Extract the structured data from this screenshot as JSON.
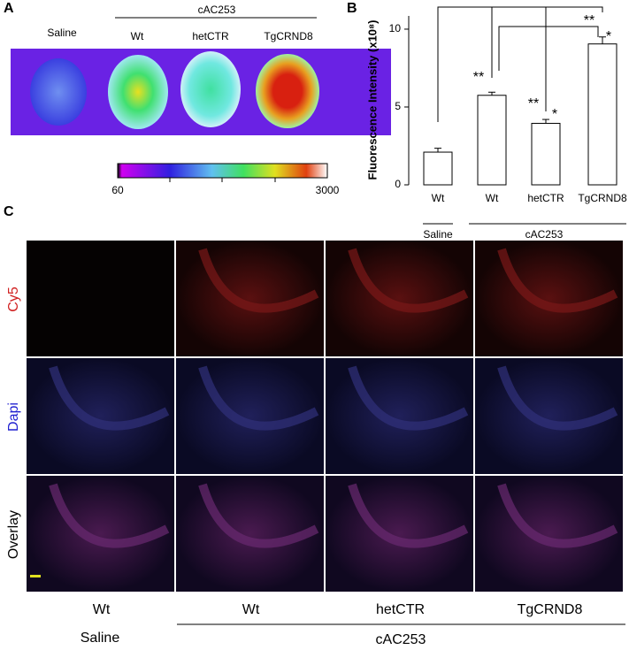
{
  "panel_a": {
    "label": "A",
    "group_label": "cAC253",
    "columns": [
      "Saline",
      "Wt",
      "hetCTR",
      "TgCRND8"
    ],
    "colorbar_ticks": [
      60,
      3000
    ]
  },
  "chart_data": {
    "type": "bar",
    "panel_label": "B",
    "ylabel": "Fluorescence Intensity (x10⁸)",
    "categories": [
      "Wt",
      "Wt",
      "hetCTR",
      "TgCRND8"
    ],
    "values": [
      2.1,
      5.75,
      3.95,
      9.05
    ],
    "errors": [
      0.25,
      0.2,
      0.25,
      0.45
    ],
    "groups": [
      "Saline",
      "cAC253"
    ],
    "significance": [
      "**",
      "**",
      "*",
      "**",
      "*"
    ],
    "color": "#ffffff",
    "ylim": [
      0,
      10.85
    ],
    "yticks": [
      0,
      5,
      10
    ]
  },
  "panel_c": {
    "label": "C",
    "rows": [
      "Cy5",
      "Dapi",
      "Overlay"
    ],
    "columns": [
      "Wt",
      "Wt",
      "hetCTR",
      "TgCRND8"
    ],
    "groups": [
      "Saline",
      "cAC253"
    ]
  }
}
